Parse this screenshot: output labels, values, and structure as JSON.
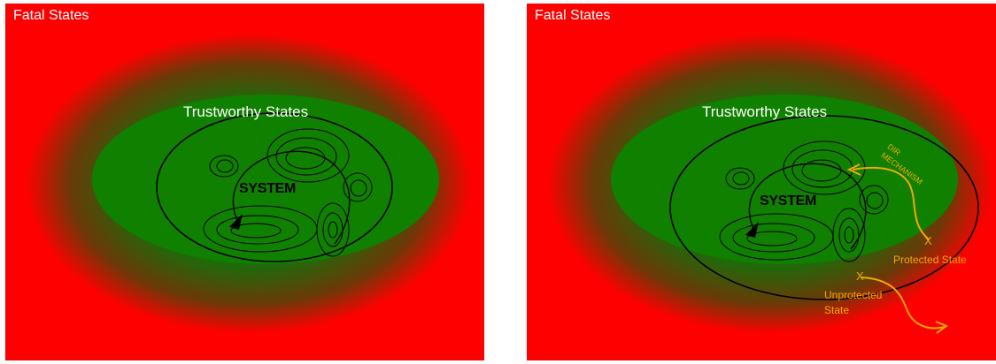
{
  "colors": {
    "fatal": "#ff0000",
    "trustworthy": "#108000",
    "orbit": "#000000",
    "mechanism": "#f0a800"
  },
  "left_panel": {
    "fatal_label": "Fatal States",
    "trustworthy_label": "Trustworthy States",
    "system_label": "SYSTEM"
  },
  "right_panel": {
    "fatal_label": "Fatal States",
    "trustworthy_label": "Trustworthy States",
    "system_label": "SYSTEM",
    "mechanism_label": "DIR\nMECHANISM",
    "protected_label": "Protected State",
    "unprotected_label": "Unprotected State",
    "x_mark": "X"
  }
}
